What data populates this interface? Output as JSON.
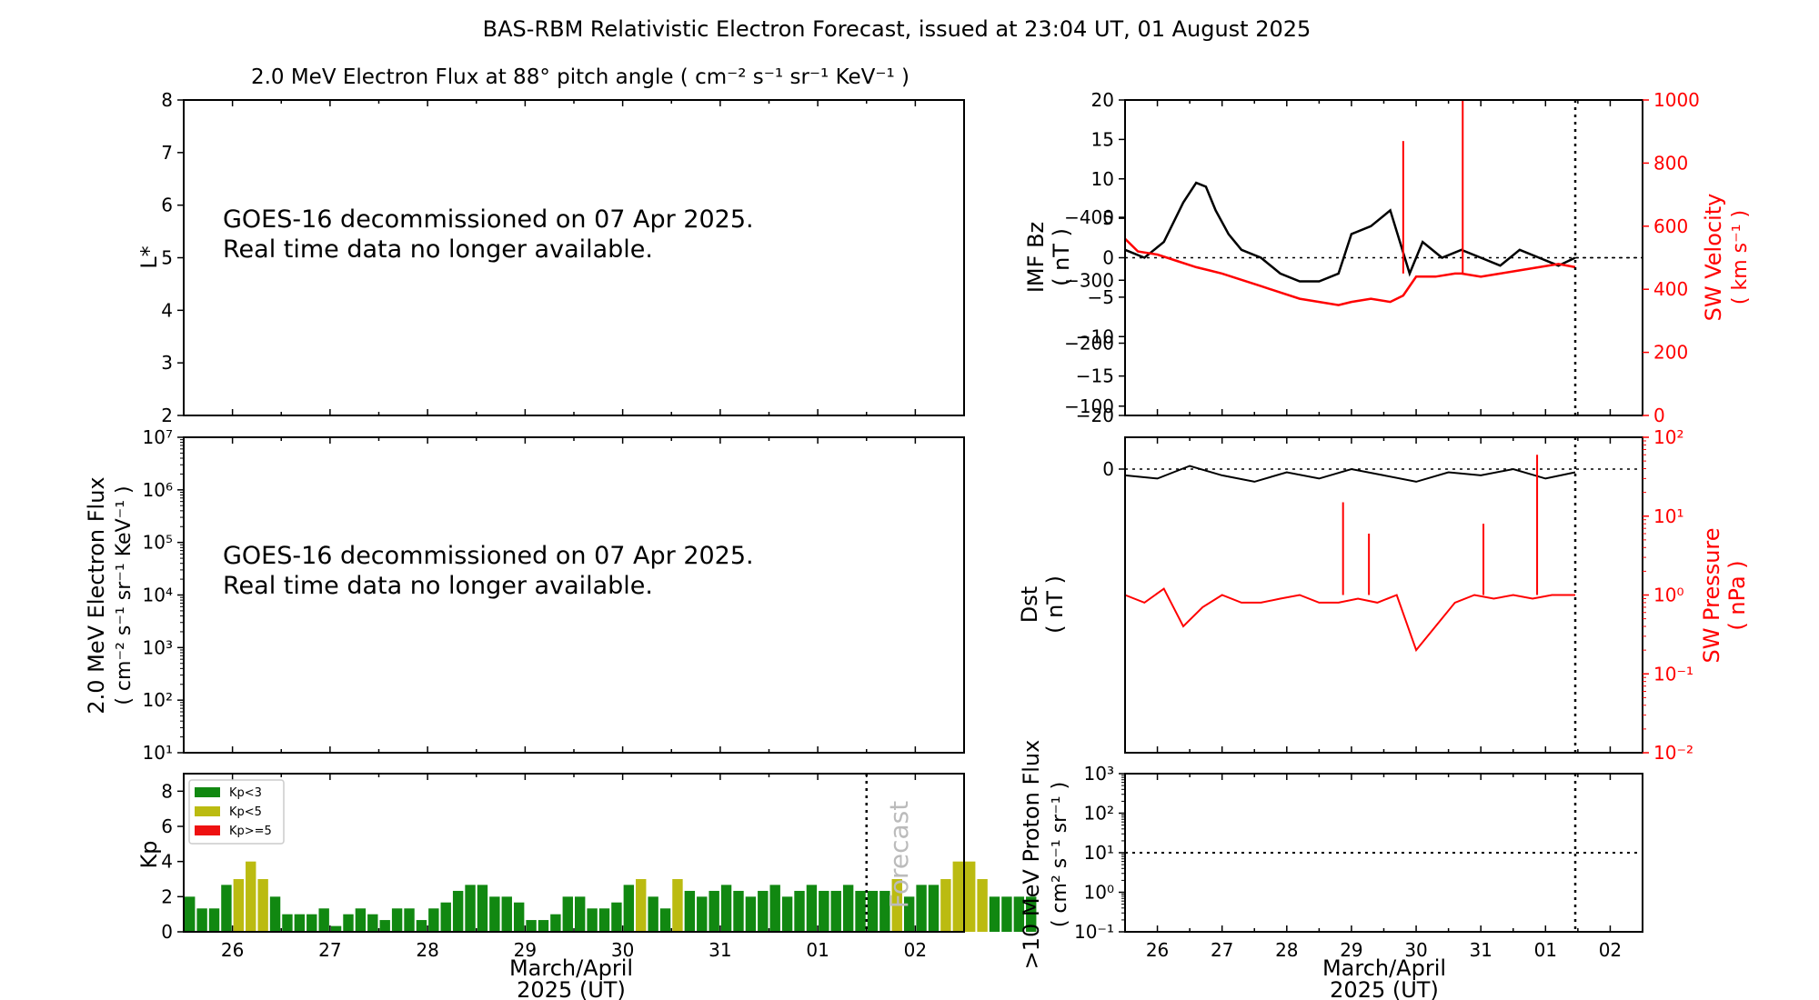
{
  "title": "BAS-RBM Relativistic Electron Forecast, issued at 23:04 UT, 01 August 2025",
  "colors": {
    "kp_green": "#118811",
    "kp_yellow": "#bbbb11",
    "kp_red": "#ee1111",
    "sw_red": "#ff0000",
    "forecast_gray": "#bbbbbb"
  },
  "decommission_msg": [
    "GOES-16 decommissioned on 07 Apr 2025.",
    "Real time data no longer available."
  ],
  "x_axis": {
    "ticks": [
      "26",
      "27",
      "28",
      "29",
      "30",
      "31",
      "01",
      "02"
    ],
    "label_line1": "March/April",
    "label_line2": "2025 (UT)"
  },
  "chart_data": [
    {
      "id": "lstar",
      "type": "heatmap",
      "title": "2.0 MeV Electron Flux at 88° pitch angle ( cm⁻² s⁻¹ sr⁻¹ KeV⁻¹ )",
      "ylabel": "L*",
      "ylim": [
        2,
        8
      ],
      "yticks": [
        "2",
        "3",
        "4",
        "5",
        "6",
        "7",
        "8"
      ],
      "xlim_days": [
        25.5,
        33.5
      ],
      "data": "none"
    },
    {
      "id": "electron_flux",
      "type": "line",
      "ylabel_line1": "2.0 MeV Electron Flux",
      "ylabel_line2": "( cm⁻² s⁻¹ sr⁻¹ KeV⁻¹ )",
      "yscale": "log",
      "yticks": [
        "10¹",
        "10²",
        "10³",
        "10⁴",
        "10⁵",
        "10⁶",
        "10⁷"
      ],
      "data": "none"
    },
    {
      "id": "kp",
      "type": "bar",
      "ylabel": "Kp",
      "ylim": [
        0,
        9
      ],
      "yticks": [
        "0",
        "2",
        "4",
        "6",
        "8"
      ],
      "legend": [
        "Kp<3",
        "Kp<5",
        "Kp>=5"
      ],
      "legend_position": "top-left",
      "forecast_label": "Forecast",
      "forecast_start_day": 32.5,
      "bar_width_hours": 3,
      "start_day": 25.5,
      "values": [
        2.0,
        1.33,
        1.33,
        2.67,
        3.0,
        4.0,
        3.0,
        2.0,
        1.0,
        1.0,
        1.0,
        1.33,
        0.33,
        1.0,
        1.33,
        1.0,
        0.67,
        1.33,
        1.33,
        0.67,
        1.33,
        1.67,
        2.33,
        2.67,
        2.67,
        2.0,
        2.0,
        1.67,
        0.67,
        0.67,
        1.0,
        2.0,
        2.0,
        1.33,
        1.33,
        1.67,
        2.67,
        3.0,
        2.0,
        1.33,
        3.0,
        2.33,
        2.0,
        2.33,
        2.67,
        2.33,
        2.0,
        2.33,
        2.67,
        2.0,
        2.33,
        2.67,
        2.33,
        2.33,
        2.67,
        2.33,
        2.33,
        2.33,
        3.0,
        2.0,
        2.67,
        2.67,
        3.0,
        4.0,
        4.0,
        3.0,
        2.0,
        2.0,
        2.0,
        2.0
      ]
    },
    {
      "id": "imf_sw",
      "type": "line",
      "ylabel_line1": "IMF Bz",
      "ylabel_line2": "( nT )",
      "ylim": [
        -20,
        20
      ],
      "yticks": [
        "−20",
        "−15",
        "−10",
        "−5",
        "0",
        "5",
        "10",
        "15",
        "20"
      ],
      "y2label_line1": "SW Velocity",
      "y2label_line2": "( km s⁻¹ )",
      "y2lim": [
        0,
        1000
      ],
      "y2ticks": [
        "0",
        "200",
        "400",
        "600",
        "800",
        "1000"
      ],
      "now_day": 32.46,
      "series": [
        {
          "name": "IMF Bz",
          "color": "#000000",
          "x": [
            25.5,
            25.8,
            26.1,
            26.4,
            26.6,
            26.75,
            26.9,
            27.1,
            27.3,
            27.6,
            27.9,
            28.2,
            28.5,
            28.8,
            29.0,
            29.3,
            29.6,
            29.9,
            30.1,
            30.4,
            30.7,
            31.0,
            31.3,
            31.6,
            31.9,
            32.2,
            32.46
          ],
          "y": [
            1,
            0,
            2,
            7,
            9.5,
            9,
            6,
            3,
            1,
            0,
            -2,
            -3,
            -3,
            -2,
            3,
            4,
            6,
            -2,
            2,
            0,
            1,
            0,
            -1,
            1,
            0,
            -1,
            0
          ]
        },
        {
          "name": "SW Velocity",
          "color": "#ff0000",
          "x": [
            25.5,
            25.7,
            26.0,
            26.3,
            26.6,
            26.8,
            27.0,
            27.3,
            27.6,
            27.9,
            28.2,
            28.5,
            28.8,
            29.0,
            29.3,
            29.6,
            29.8,
            30.0,
            30.3,
            30.6,
            30.7,
            31.0,
            31.3,
            31.6,
            31.9,
            32.2,
            32.46
          ],
          "y": [
            560,
            520,
            510,
            490,
            470,
            460,
            450,
            430,
            410,
            390,
            370,
            360,
            350,
            360,
            370,
            360,
            380,
            440,
            440,
            450,
            450,
            440,
            450,
            460,
            470,
            480,
            470
          ]
        }
      ],
      "spikes": [
        {
          "x": 29.8,
          "y": 870
        },
        {
          "x": 30.72,
          "y": 1000
        }
      ]
    },
    {
      "id": "dst_pressure",
      "type": "line",
      "ylabel_line1": "Dst",
      "ylabel_line2": "( nT )",
      "yticks": [
        "−400",
        "−300",
        "−200",
        "−100",
        "0"
      ],
      "y2label_line1": "SW Pressure",
      "y2label_line2": "( nPa )",
      "y2scale": "log",
      "y2ticks": [
        "10⁻²",
        "10⁻¹",
        "10⁰",
        "10¹",
        "10²"
      ],
      "series": [
        {
          "name": "Dst",
          "color": "#000000",
          "x": [
            25.5,
            26.0,
            26.5,
            27.0,
            27.5,
            28.0,
            28.5,
            29.0,
            29.5,
            30.0,
            30.5,
            31.0,
            31.5,
            32.0,
            32.46
          ],
          "y": [
            10,
            15,
            -5,
            10,
            20,
            5,
            15,
            0,
            10,
            20,
            5,
            10,
            0,
            15,
            5
          ]
        },
        {
          "name": "SW Pressure",
          "color": "#ff0000",
          "x": [
            25.5,
            25.8,
            26.1,
            26.4,
            26.7,
            27.0,
            27.3,
            27.6,
            27.9,
            28.2,
            28.5,
            28.8,
            29.1,
            29.4,
            29.7,
            30.0,
            30.3,
            30.6,
            30.9,
            31.2,
            31.5,
            31.8,
            32.1,
            32.46
          ],
          "y": [
            1.0,
            0.8,
            1.2,
            0.4,
            0.7,
            1.0,
            0.8,
            0.8,
            0.9,
            1.0,
            0.8,
            0.8,
            0.9,
            0.8,
            1.0,
            0.2,
            0.4,
            0.8,
            1.0,
            0.9,
            1.0,
            0.9,
            1.0,
            1.0
          ]
        }
      ],
      "spikes": [
        {
          "x": 28.87,
          "y": 15
        },
        {
          "x": 29.27,
          "y": 6
        },
        {
          "x": 31.87,
          "y": 60
        },
        {
          "x": 31.04,
          "y": 8
        }
      ]
    },
    {
      "id": "proton_flux",
      "type": "line",
      "ylabel_line1": ">10 MeV Proton Flux",
      "ylabel_line2": "( cm² s⁻¹ sr⁻¹ )",
      "yscale": "log",
      "yticks": [
        "10⁻¹",
        "10⁰",
        "10¹",
        "10²",
        "10³"
      ],
      "threshold": 10,
      "data": "none"
    }
  ]
}
